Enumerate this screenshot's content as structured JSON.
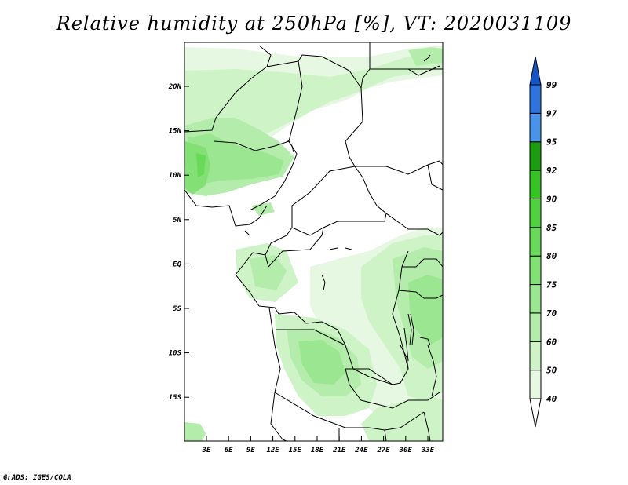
{
  "title": "Relative humidity at 250hPa [%], VT: 2020031109",
  "footer": "GrADS: IGES/COLA",
  "map": {
    "lon_range": [
      0,
      36
    ],
    "lat_range": [
      -20,
      25
    ],
    "lon_ticks": [
      "3E",
      "6E",
      "9E",
      "12E",
      "15E",
      "18E",
      "21E",
      "24E",
      "27E",
      "30E",
      "33E"
    ],
    "lat_ticks": [
      "20N",
      "15N",
      "10N",
      "5N",
      "EQ",
      "5S",
      "10S",
      "15S"
    ]
  },
  "colorbar": {
    "labels": [
      "40",
      "50",
      "60",
      "70",
      "75",
      "80",
      "85",
      "90",
      "92",
      "95",
      "97",
      "99"
    ],
    "colors": [
      "#e6f8e2",
      "#cdf3c6",
      "#b4edab",
      "#9be690",
      "#82e075",
      "#69d95a",
      "#50d23f",
      "#36c424",
      "#1c9c10",
      "#4a93ea",
      "#2f73dc",
      "#1456c8"
    ]
  }
}
